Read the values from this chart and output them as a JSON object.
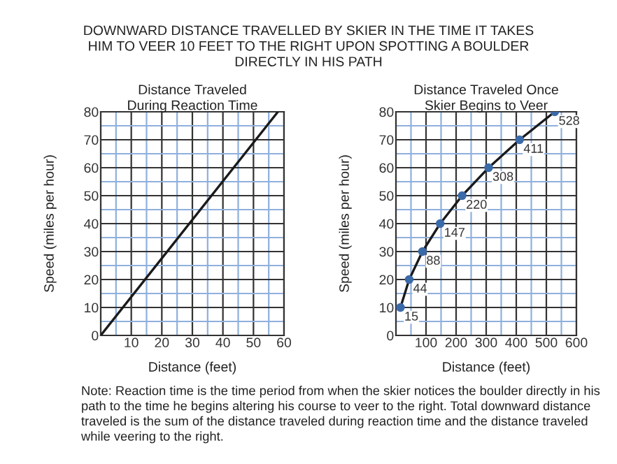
{
  "chart_data": [
    {
      "type": "line",
      "title": "Distance Traveled\nDuring Reaction Time",
      "xlabel": "Distance (feet)",
      "ylabel": "Speed (miles per hour)",
      "annotations": [
        "DOWNWARD DISTANCE TRAVELLED BY SKIER IN THE TIME IT TAKES\nHIM TO VEER 10 FEET TO THE RIGHT UPON SPOTTING A BOULDER\nDIRECTLY IN HIS PATH"
      ],
      "series": [
        {
          "color": "#1a1a1a",
          "x": [
            0,
            58
          ],
          "values": [
            0,
            80
          ]
        }
      ],
      "xlim": [
        0,
        60
      ],
      "ylim": [
        0,
        80
      ],
      "xticks": [
        {
          "value": 0,
          "label": null
        },
        {
          "value": 5,
          "label": null
        },
        10,
        {
          "value": 15,
          "label": null
        },
        20,
        {
          "value": 25,
          "label": null
        },
        30,
        {
          "value": 35,
          "label": null
        },
        40,
        {
          "value": 45,
          "label": null
        },
        50,
        {
          "value": 55,
          "label": null
        },
        60
      ],
      "yticks": [
        0,
        {
          "value": 5,
          "label": null
        },
        10,
        {
          "value": 15,
          "label": null
        },
        20,
        {
          "value": 25,
          "label": null
        },
        30,
        {
          "value": 35,
          "label": null
        },
        40,
        {
          "value": 45,
          "label": null
        },
        50,
        {
          "value": 55,
          "label": null
        },
        60,
        {
          "value": 65,
          "label": null
        },
        70,
        {
          "value": 75,
          "label": null
        },
        80
      ],
      "grid": true,
      "marker": "none"
    },
    {
      "type": "line",
      "title": "Distance Traveled Once\nSkier Begins to Veer",
      "xlabel": "Distance (feet)",
      "ylabel": "Speed (miles per hour)",
      "annotations": [
        {
          "text": "15",
          "x": 15,
          "y": 10
        },
        {
          "text": "44",
          "x": 44,
          "y": 20
        },
        {
          "text": "88",
          "x": 88,
          "y": 30
        },
        {
          "text": "147",
          "x": 147,
          "y": 40
        },
        {
          "text": "220",
          "x": 220,
          "y": 50
        },
        {
          "text": "308",
          "x": 308,
          "y": 60
        },
        {
          "text": "411",
          "x": 411,
          "y": 70
        },
        {
          "text": "528",
          "x": 528,
          "y": 80
        },
        "Note: Reaction time is the time period from when the skier notices the boulder directly in his path to the time he begins altering his course to veer to the right. Total downward distance traveled is the sum of the distance traveled during reaction time and the distance traveled while veering to the right."
      ],
      "series": [
        {
          "color": "#1a1a1a",
          "x": [
            15,
            44,
            88,
            147,
            220,
            308,
            411,
            528
          ],
          "values": [
            10,
            20,
            30,
            40,
            50,
            60,
            70,
            80
          ]
        },
        {
          "type": "scatter",
          "marker": "circle",
          "color": "#3b6aa8",
          "x": [
            15,
            44,
            88,
            147,
            220,
            308,
            411,
            528
          ],
          "values": [
            10,
            20,
            30,
            40,
            50,
            60,
            70,
            80
          ]
        }
      ],
      "xlim": [
        0,
        600
      ],
      "ylim": [
        0,
        80
      ],
      "xticks": [
        {
          "value": 0,
          "label": null
        },
        {
          "value": 50,
          "label": null
        },
        100,
        {
          "value": 150,
          "label": null
        },
        200,
        {
          "value": 250,
          "label": null
        },
        300,
        {
          "value": 350,
          "label": null
        },
        400,
        {
          "value": 450,
          "label": null
        },
        500,
        {
          "value": 550,
          "label": null
        },
        600
      ],
      "yticks": [
        0,
        {
          "value": 5,
          "label": null
        },
        10,
        {
          "value": 15,
          "label": null
        },
        20,
        {
          "value": 25,
          "label": null
        },
        30,
        {
          "value": 35,
          "label": null
        },
        40,
        {
          "value": 45,
          "label": null
        },
        50,
        {
          "value": 55,
          "label": null
        },
        60,
        {
          "value": 65,
          "label": null
        },
        70,
        {
          "value": 75,
          "label": null
        },
        80
      ],
      "grid": true
    }
  ]
}
